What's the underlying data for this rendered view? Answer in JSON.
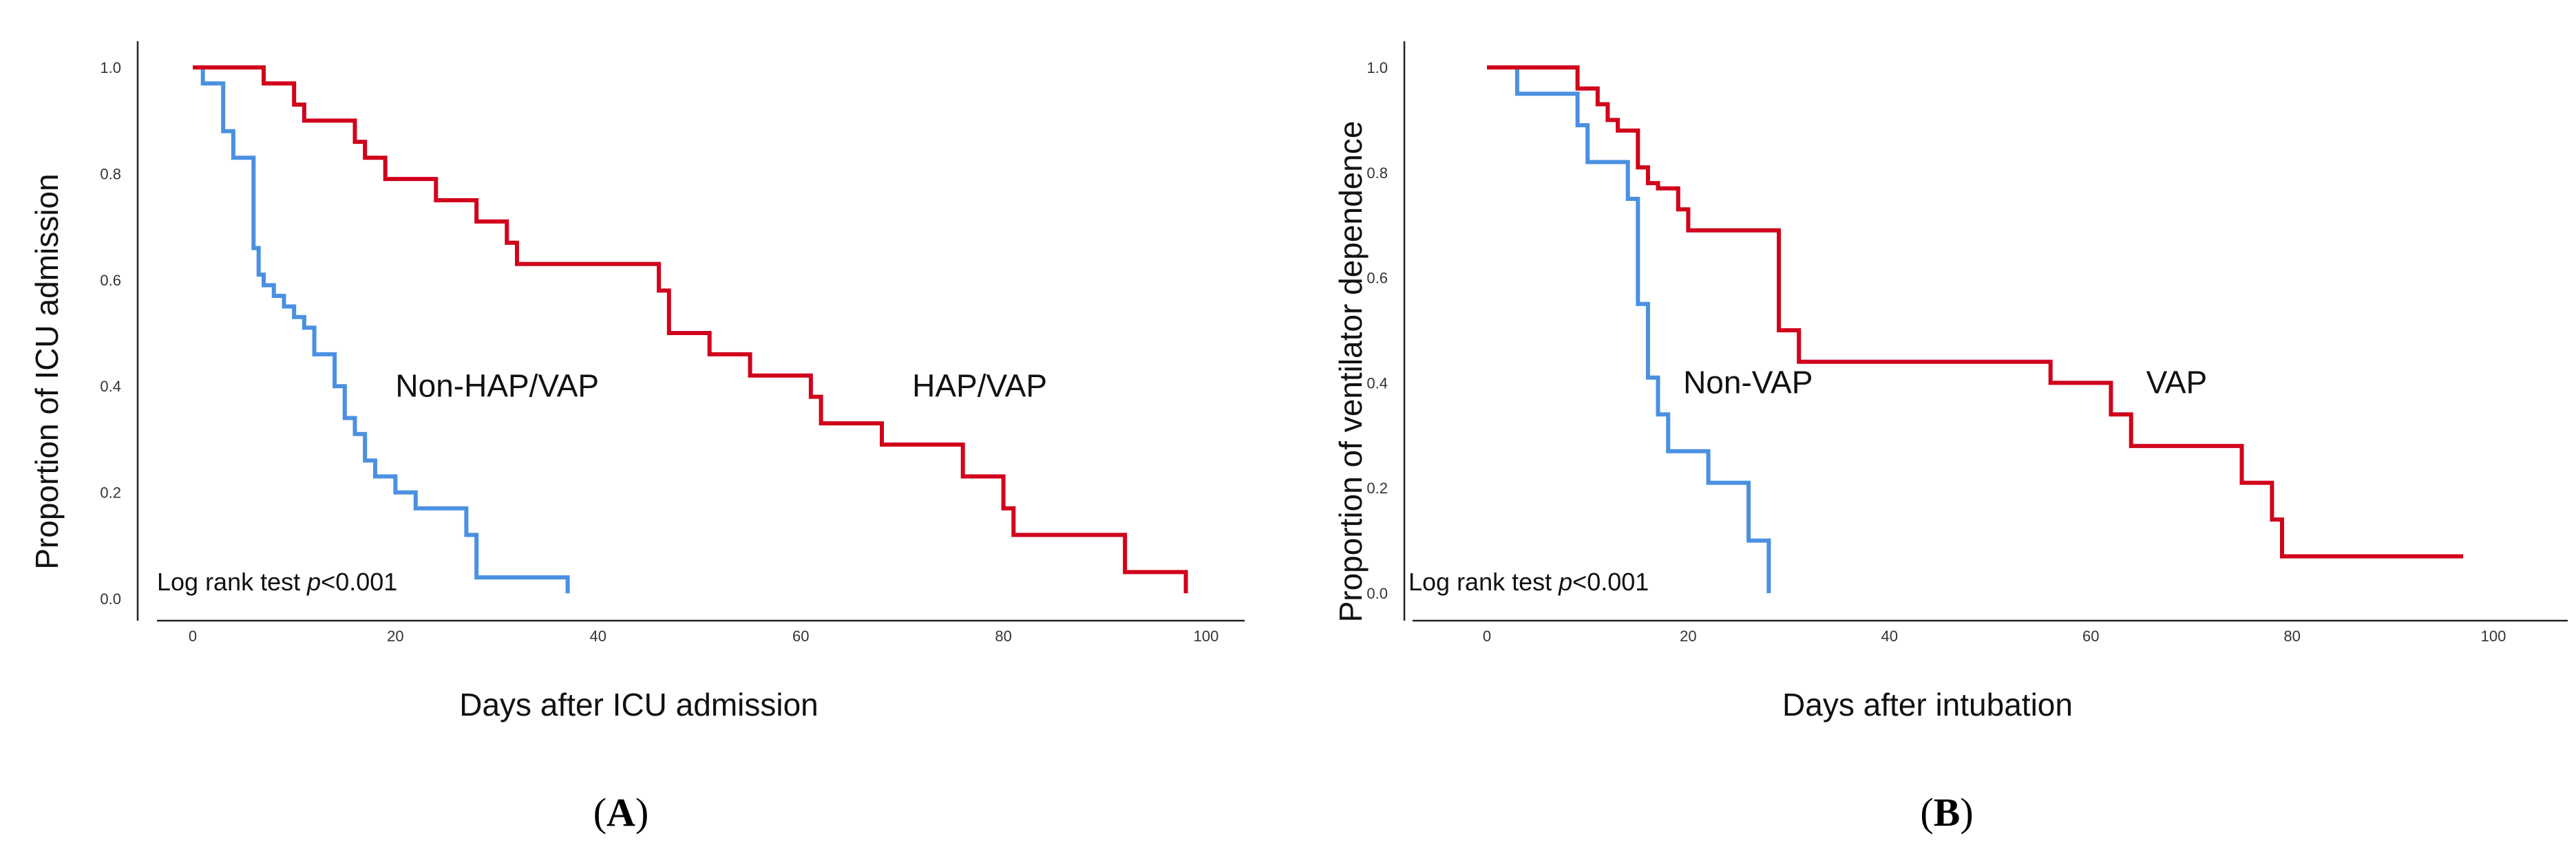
{
  "chart_data": [
    {
      "type": "line",
      "panel_label": "A",
      "title": "",
      "xlabel": "Days after ICU admission",
      "ylabel": "Proportion of ICU admission",
      "xlim": [
        0,
        100
      ],
      "ylim": [
        0,
        1
      ],
      "xticks": [
        "0",
        "20",
        "40",
        "60",
        "80",
        "100"
      ],
      "yticks": [
        "0.0",
        "0.2",
        "0.4",
        "0.6",
        "0.8",
        "1.0"
      ],
      "annotation": {
        "prefix": "Log rank test ",
        "p": "p",
        "suffix": "<0.001"
      },
      "grid": false,
      "series": [
        {
          "name": "Non-HAP/VAP",
          "color": "#4a90e2",
          "label_at": [
            20,
            0.38
          ],
          "x": [
            0,
            1,
            1,
            3,
            3,
            4,
            4,
            6,
            6,
            6.5,
            6.5,
            7,
            7,
            8,
            8,
            9,
            9,
            10,
            10,
            11,
            11,
            12,
            12,
            14,
            14,
            15,
            15,
            16,
            16,
            17,
            17,
            18,
            18,
            20,
            20,
            22,
            22,
            27,
            27,
            28,
            28,
            30,
            30,
            37,
            37
          ],
          "y": [
            1.0,
            1.0,
            0.97,
            0.97,
            0.88,
            0.88,
            0.83,
            0.83,
            0.66,
            0.66,
            0.61,
            0.61,
            0.59,
            0.59,
            0.57,
            0.57,
            0.55,
            0.55,
            0.53,
            0.53,
            0.51,
            0.51,
            0.46,
            0.46,
            0.4,
            0.4,
            0.34,
            0.34,
            0.31,
            0.31,
            0.26,
            0.26,
            0.23,
            0.23,
            0.2,
            0.2,
            0.17,
            0.17,
            0.12,
            0.12,
            0.04,
            0.04,
            0.04,
            0.04,
            0.01
          ]
        },
        {
          "name": "HAP/VAP",
          "color": "#d0021b",
          "label_at": [
            71,
            0.38
          ],
          "x": [
            0,
            7,
            7,
            10,
            10,
            11,
            11,
            16,
            16,
            17,
            17,
            19,
            19,
            24,
            24,
            28,
            28,
            31,
            31,
            32,
            32,
            46,
            46,
            47,
            47,
            51,
            51,
            55,
            55,
            61,
            61,
            62,
            62,
            68,
            68,
            76,
            76,
            80,
            80,
            81,
            81,
            92,
            92,
            98,
            98
          ],
          "y": [
            1.0,
            1.0,
            0.97,
            0.97,
            0.93,
            0.93,
            0.9,
            0.9,
            0.86,
            0.86,
            0.83,
            0.83,
            0.79,
            0.79,
            0.75,
            0.75,
            0.71,
            0.71,
            0.67,
            0.67,
            0.63,
            0.63,
            0.58,
            0.58,
            0.5,
            0.5,
            0.46,
            0.46,
            0.42,
            0.42,
            0.38,
            0.38,
            0.33,
            0.33,
            0.29,
            0.29,
            0.23,
            0.23,
            0.17,
            0.17,
            0.12,
            0.12,
            0.05,
            0.05,
            0.01
          ]
        }
      ]
    },
    {
      "type": "line",
      "panel_label": "B",
      "title": "",
      "xlabel": "Days after intubation",
      "ylabel": "Proportion of ventilator dependence",
      "xlim": [
        0,
        100
      ],
      "ylim": [
        0,
        1
      ],
      "xticks": [
        "0",
        "20",
        "40",
        "60",
        "80",
        "100"
      ],
      "yticks": [
        "0.0",
        "0.2",
        "0.4",
        "0.6",
        "0.8",
        "1.0"
      ],
      "annotation": {
        "prefix": "Log rank test ",
        "p": "p",
        "suffix": "<0.001"
      },
      "grid": false,
      "series": [
        {
          "name": "Non-VAP",
          "color": "#4a90e2",
          "label_at": [
            19.5,
            0.38
          ],
          "x": [
            0,
            3,
            3,
            9,
            9,
            10,
            10,
            14,
            14,
            15,
            15,
            16,
            16,
            17,
            17,
            18,
            18,
            22,
            22,
            26,
            26,
            28,
            28
          ],
          "y": [
            1.0,
            1.0,
            0.95,
            0.95,
            0.89,
            0.89,
            0.82,
            0.82,
            0.75,
            0.75,
            0.55,
            0.55,
            0.41,
            0.41,
            0.34,
            0.34,
            0.27,
            0.27,
            0.21,
            0.21,
            0.1,
            0.1,
            0.0
          ]
        },
        {
          "name": "VAP",
          "color": "#d0021b",
          "label_at": [
            65.5,
            0.38
          ],
          "x": [
            0,
            9,
            9,
            11,
            11,
            12,
            12,
            13,
            13,
            15,
            15,
            16,
            16,
            17,
            17,
            19,
            19,
            20,
            20,
            22,
            22,
            29,
            29,
            31,
            31,
            56,
            56,
            62,
            62,
            64,
            64,
            75,
            75,
            78,
            78,
            79,
            79,
            97
          ],
          "y": [
            1.0,
            1.0,
            0.96,
            0.96,
            0.93,
            0.93,
            0.9,
            0.9,
            0.88,
            0.88,
            0.81,
            0.81,
            0.78,
            0.78,
            0.77,
            0.77,
            0.73,
            0.73,
            0.69,
            0.69,
            0.69,
            0.69,
            0.5,
            0.5,
            0.44,
            0.44,
            0.4,
            0.4,
            0.34,
            0.34,
            0.28,
            0.28,
            0.21,
            0.21,
            0.14,
            0.14,
            0.07,
            0.07
          ]
        }
      ]
    }
  ]
}
